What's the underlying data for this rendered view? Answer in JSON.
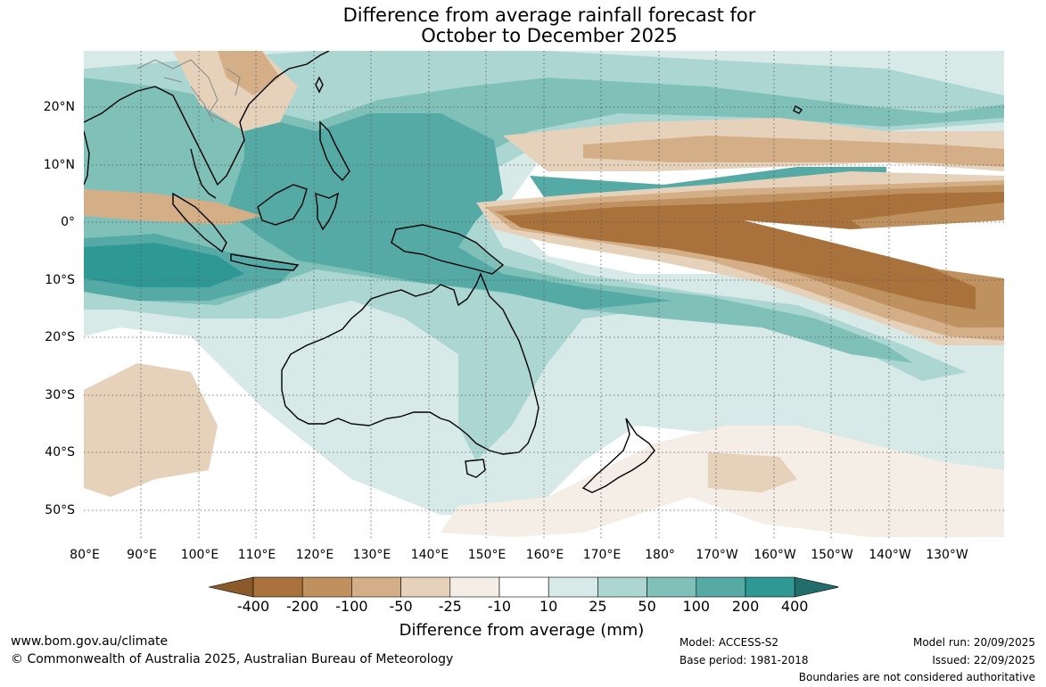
{
  "title": {
    "line1": "Difference from average rainfall forecast for",
    "line2": "October to December 2025"
  },
  "map": {
    "region": "Australia, Maritime Continent and tropical Pacific",
    "lat_labels": [
      "20°N",
      "10°N",
      "0°",
      "10°S",
      "20°S",
      "30°S",
      "40°S",
      "50°S"
    ],
    "lon_labels": [
      "80°E",
      "90°E",
      "100°E",
      "110°E",
      "120°E",
      "130°E",
      "140°E",
      "150°E",
      "160°E",
      "170°E",
      "180°",
      "170°W",
      "160°W",
      "150°W",
      "140°W",
      "130°W"
    ],
    "gridlines": "dotted",
    "colors": {
      "coastline": "#000000",
      "country_borders": "#888888",
      "gridline": "#555555"
    }
  },
  "colorbar": {
    "label": "Difference from average (mm)",
    "ticks": [
      "-400",
      "-200",
      "-100",
      "-50",
      "-25",
      "-10",
      "10",
      "25",
      "50",
      "100",
      "200",
      "400"
    ],
    "colors": [
      "#8b5a2b",
      "#a9713b",
      "#bf915f",
      "#d4ae86",
      "#e6d2ba",
      "#f4eee6",
      "#ffffff",
      "#d7eae8",
      "#abd6d2",
      "#7fc0b9",
      "#55aaa6",
      "#2e9895",
      "#216e6c"
    ]
  },
  "footer": {
    "website": "www.bom.gov.au/climate",
    "copyright": "© Commonwealth of Australia 2025, Australian Bureau of Meteorology",
    "model": "Model: ACCESS-S2",
    "base_period": "Base period: 1981-2018",
    "model_run": "Model run: 20/09/2025",
    "issued": "Issued: 22/09/2025",
    "disclaimer": "Boundaries are not considered authoritative"
  }
}
